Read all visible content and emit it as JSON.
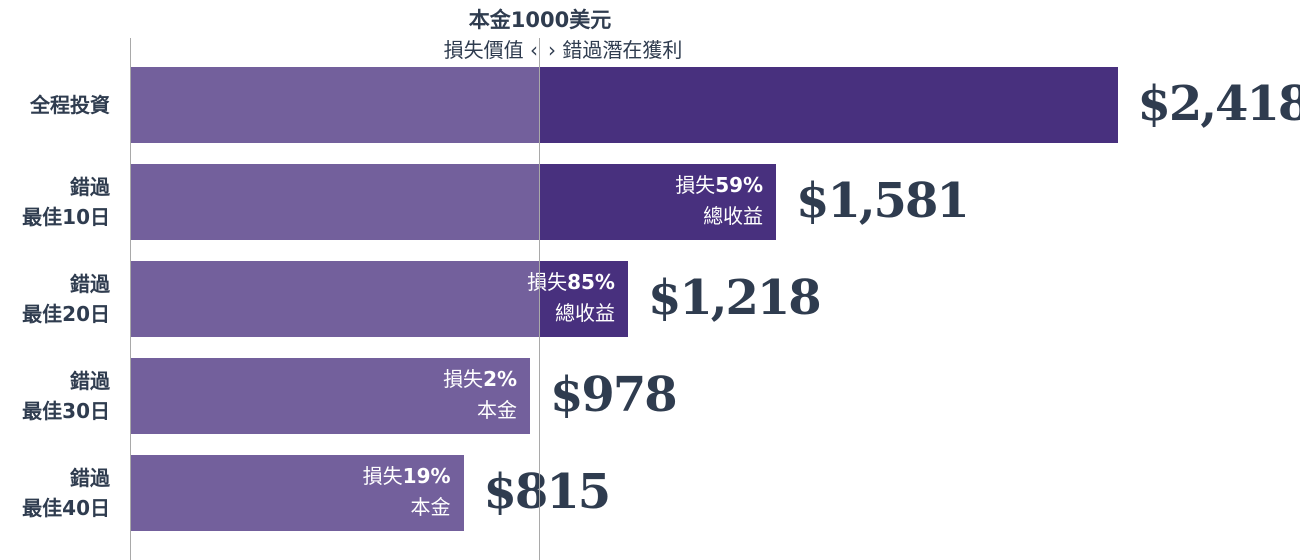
{
  "header": {
    "title": "本金1000美元",
    "left_label": "損失價值",
    "left_arrow": "‹",
    "right_arrow": "›",
    "right_label": "錯過潛在獲利"
  },
  "chart_data": {
    "type": "bar",
    "orientation": "horizontal",
    "baseline": 1000,
    "categories": [
      [
        "全程投資"
      ],
      [
        "錯過",
        "最佳10日"
      ],
      [
        "錯過",
        "最佳20日"
      ],
      [
        "錯過",
        "最佳30日"
      ],
      [
        "錯過",
        "最佳40日"
      ]
    ],
    "values": [
      2418,
      1581,
      1218,
      978,
      815
    ],
    "value_labels": [
      "$2,418",
      "$1,581",
      "$1,218",
      "$978",
      "$815"
    ],
    "notes": [
      null,
      {
        "prefix": "損失",
        "pct": "59%",
        "suffix": "總收益"
      },
      {
        "prefix": "損失",
        "pct": "85%",
        "suffix": "總收益"
      },
      {
        "prefix": "損失",
        "pct": "2%",
        "suffix": "本金"
      },
      {
        "prefix": "損失",
        "pct": "19%",
        "suffix": "本金"
      }
    ],
    "colors": {
      "base": "#73609c",
      "gain": "#48307e",
      "text_dark": "#2f3c4f",
      "axis": "#a9a9a9"
    }
  }
}
